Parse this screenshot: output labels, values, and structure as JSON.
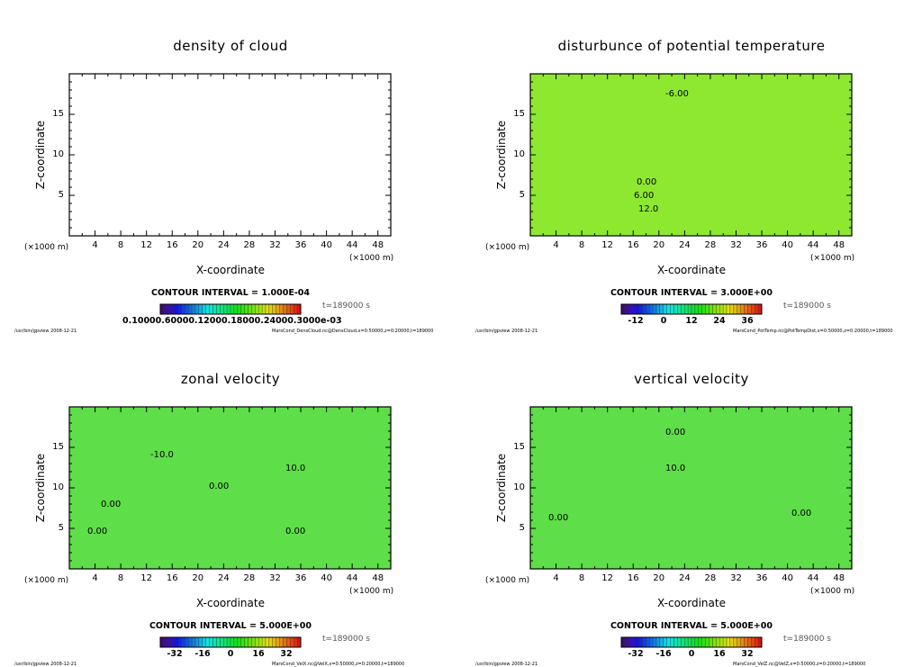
{
  "chart_data": [
    {
      "type": "heatmap",
      "title": "density of cloud",
      "xlabel": "X-coordinate",
      "ylabel": "Z-coordinate",
      "x_unit": "(×1000 m)",
      "y_unit": "(×1000 m)",
      "xlim": [
        0,
        50
      ],
      "ylim": [
        0,
        20
      ],
      "xticks": [
        "4",
        "8",
        "12",
        "16",
        "20",
        "24",
        "28",
        "32",
        "36",
        "40",
        "44",
        "48"
      ],
      "yticks": [
        "5",
        "10",
        "15"
      ],
      "contour_interval": "CONTOUR INTERVAL = 1.000E-04",
      "colorbar_labels": [
        "0.10000.60000.12000.18000.24000.3000e-03"
      ],
      "time": "t=189000 s",
      "contour_labels": [],
      "footer_left": "/usr/bin/gpview  2008-12-21",
      "footer_right": "MarsCond_DensCloud.nc@DensCloud,x=0:50000,z=0:20000,t=189000"
    },
    {
      "type": "heatmap",
      "title": "disturbunce of potential temperature",
      "xlabel": "X-coordinate",
      "ylabel": "Z-coordinate",
      "x_unit": "(×1000 m)",
      "y_unit": "(×1000 m)",
      "xlim": [
        0,
        50
      ],
      "ylim": [
        0,
        20
      ],
      "xticks": [
        "4",
        "8",
        "12",
        "16",
        "20",
        "24",
        "28",
        "32",
        "36",
        "40",
        "44",
        "48"
      ],
      "yticks": [
        "5",
        "10",
        "15"
      ],
      "contour_interval": "CONTOUR INTERVAL = 3.000E+00",
      "colorbar_labels": [
        "-12",
        "0",
        "12",
        "24",
        "36"
      ],
      "time": "t=189000 s",
      "contour_labels": [
        "-6.00",
        "0.00",
        "6.00",
        "12.0"
      ],
      "footer_left": "/usr/bin/gpview  2008-12-21",
      "footer_right": "MarsCond_PotTemp.nc@PotTempDist,x=0:50000,z=0:20000,t=189000"
    },
    {
      "type": "heatmap",
      "title": "zonal velocity",
      "xlabel": "X-coordinate",
      "ylabel": "Z-coordinate",
      "x_unit": "(×1000 m)",
      "y_unit": "(×1000 m)",
      "xlim": [
        0,
        50
      ],
      "ylim": [
        0,
        20
      ],
      "xticks": [
        "4",
        "8",
        "12",
        "16",
        "20",
        "24",
        "28",
        "32",
        "36",
        "40",
        "44",
        "48"
      ],
      "yticks": [
        "5",
        "10",
        "15"
      ],
      "contour_interval": "CONTOUR INTERVAL = 5.000E+00",
      "colorbar_labels": [
        "-32",
        "-16",
        "0",
        "16",
        "32"
      ],
      "time": "t=189000 s",
      "contour_labels": [
        "-10.0",
        "10.0",
        "0.00",
        "0.00",
        "0.00",
        "0.00"
      ],
      "footer_left": "/usr/bin/gpview  2008-12-21",
      "footer_right": "MarsCond_VelX.nc@VelX,x=0:50000,z=0:20000,t=189000"
    },
    {
      "type": "heatmap",
      "title": "vertical velocity",
      "xlabel": "X-coordinate",
      "ylabel": "Z-coordinate",
      "x_unit": "(×1000 m)",
      "y_unit": "(×1000 m)",
      "xlim": [
        0,
        50
      ],
      "ylim": [
        0,
        20
      ],
      "xticks": [
        "4",
        "8",
        "12",
        "16",
        "20",
        "24",
        "28",
        "32",
        "36",
        "40",
        "44",
        "48"
      ],
      "yticks": [
        "5",
        "10",
        "15"
      ],
      "contour_interval": "CONTOUR INTERVAL = 5.000E+00",
      "colorbar_labels": [
        "-32",
        "-16",
        "0",
        "16",
        "32"
      ],
      "time": "t=189000 s",
      "contour_labels": [
        "10.0",
        "0.00",
        "0.00",
        "0.00"
      ],
      "footer_left": "/usr/bin/gpview  2008-12-21",
      "footer_right": "MarsCond_VelZ.nc@VelZ,x=0:50000,z=0:20000,t=189000"
    }
  ]
}
